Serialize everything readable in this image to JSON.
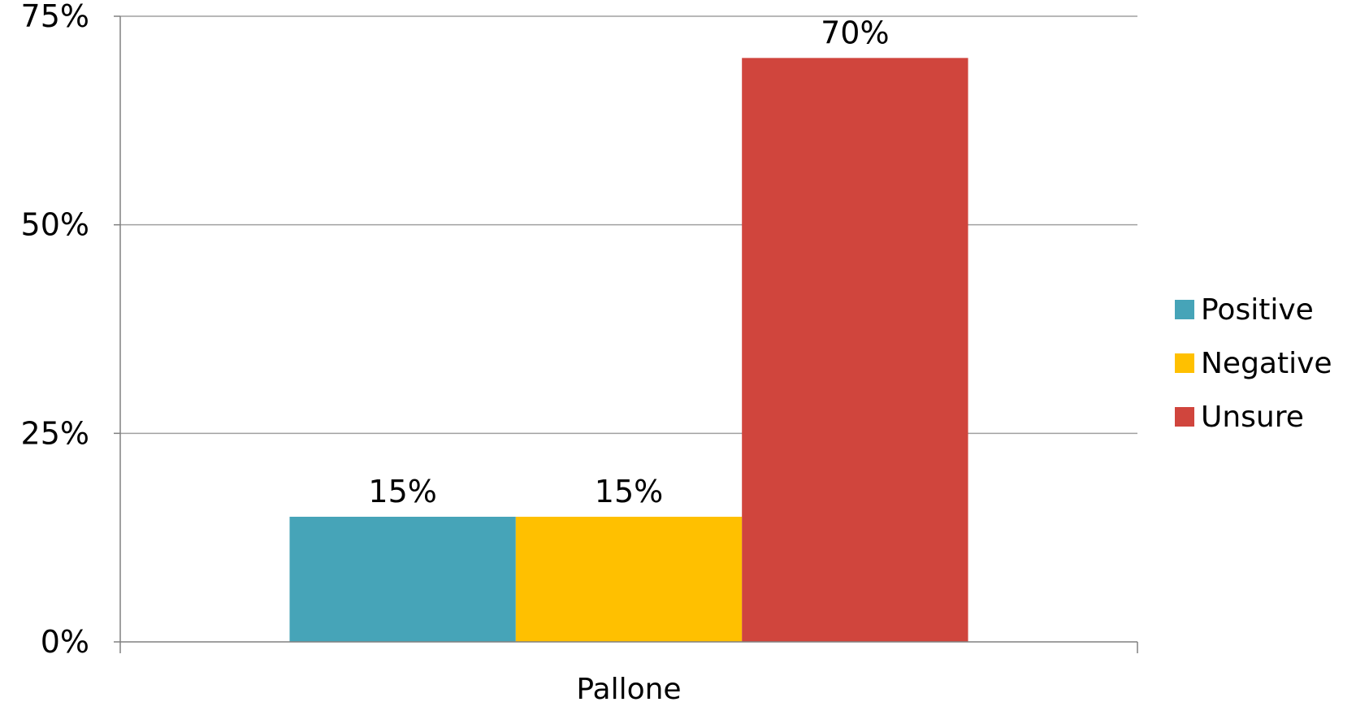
{
  "chart_data": {
    "type": "bar",
    "categories": [
      "Pallone"
    ],
    "series": [
      {
        "name": "Positive",
        "values": [
          15
        ],
        "label": "15%",
        "color": "#46A4B8"
      },
      {
        "name": "Negative",
        "values": [
          15
        ],
        "label": "15%",
        "color": "#FFC000"
      },
      {
        "name": "Unsure",
        "values": [
          70
        ],
        "label": "70%",
        "color": "#D0453D"
      }
    ],
    "ylim": [
      0,
      75
    ],
    "yticks": [
      {
        "value": 0,
        "label": "0%"
      },
      {
        "value": 25,
        "label": "25%"
      },
      {
        "value": 50,
        "label": "50%"
      },
      {
        "value": 75,
        "label": "75%"
      }
    ],
    "title": "",
    "xlabel": "",
    "ylabel": "",
    "grid": true,
    "legend_position": "right"
  }
}
